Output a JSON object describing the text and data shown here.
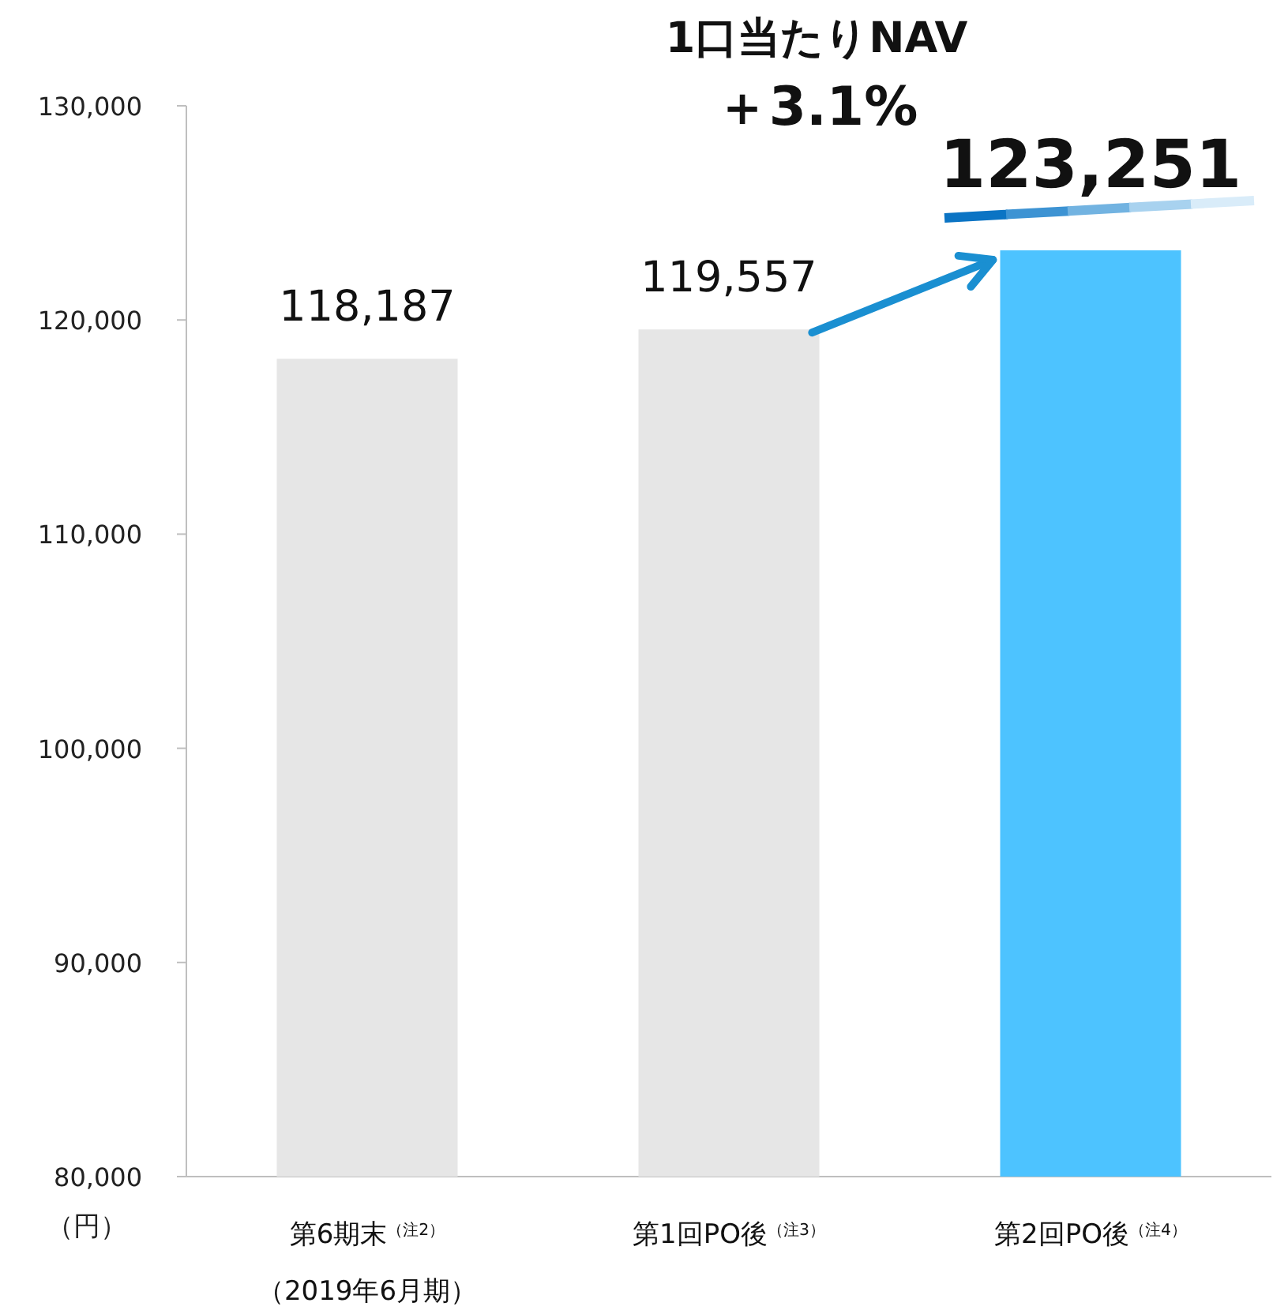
{
  "chart_data": {
    "type": "bar",
    "categories": [
      "第6期末$^{（注2）}$",
      "第1回PO後$^{（注3）}$",
      "第2回PO後$^{（注4）}$"
    ],
    "values": [
      118187,
      119557,
      123251
    ],
    "colors": [
      "#e6e6e6",
      "#e6e6e6",
      "#4dc3ff"
    ],
    "value_labels": [
      "118,187",
      "119,557",
      "123,251"
    ],
    "ylabel": "（円）",
    "ylim": [
      80000,
      130000
    ],
    "yticks": [
      {
        "value": 80000,
        "label": "80,000"
      },
      {
        "value": 90000,
        "label": "90,000"
      },
      {
        "value": 100000,
        "label": "100,000"
      },
      {
        "value": 110000,
        "label": "110,000"
      },
      {
        "value": 120000,
        "label": "120,000"
      },
      {
        "value": 130000,
        "label": "130,000"
      }
    ],
    "annotations": [
      "1口当たりNAV",
      "＋3.1%",
      "（2019年6月期）"
    ],
    "grid": false
  }
}
